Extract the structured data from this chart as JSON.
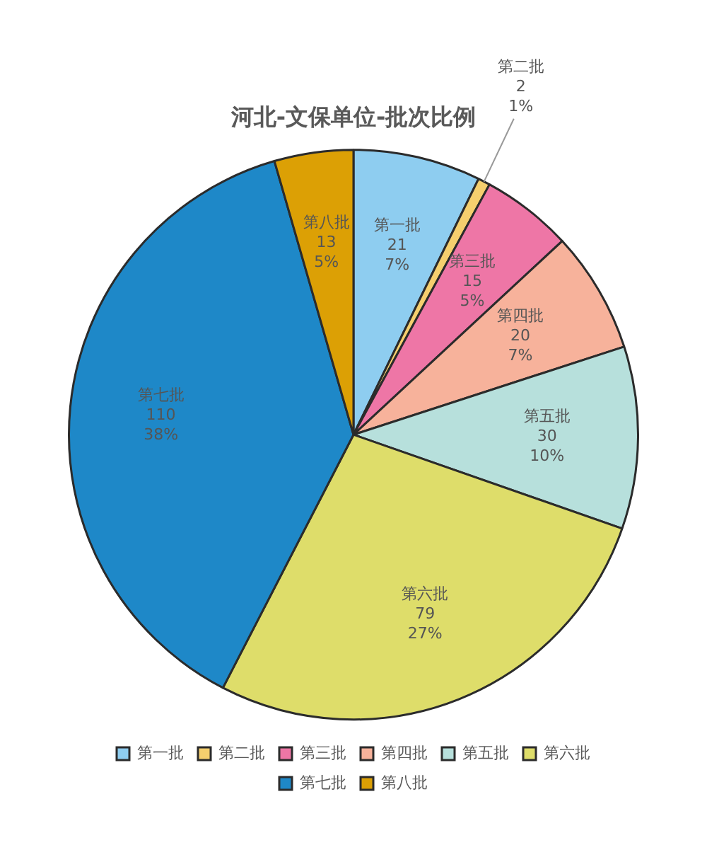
{
  "chart_data": {
    "type": "pie",
    "title": "河北-文保单位-批次比例",
    "categories": [
      "第一批",
      "第二批",
      "第三批",
      "第四批",
      "第五批",
      "第六批",
      "第七批",
      "第八批"
    ],
    "values": [
      21,
      2,
      15,
      20,
      30,
      79,
      110,
      13
    ],
    "colors": [
      "#8ecdf0",
      "#f5cf6e",
      "#ee76a6",
      "#f7b29b",
      "#b7e0dc",
      "#dedd6a",
      "#1e88c8",
      "#dca005"
    ],
    "value_labels": [
      "21\n7%",
      "2\n1%",
      "15\n5%",
      "20\n7%",
      "30\n10%",
      "79\n27%",
      "110\n38%",
      "13\n5%"
    ],
    "legend": "bottom"
  }
}
